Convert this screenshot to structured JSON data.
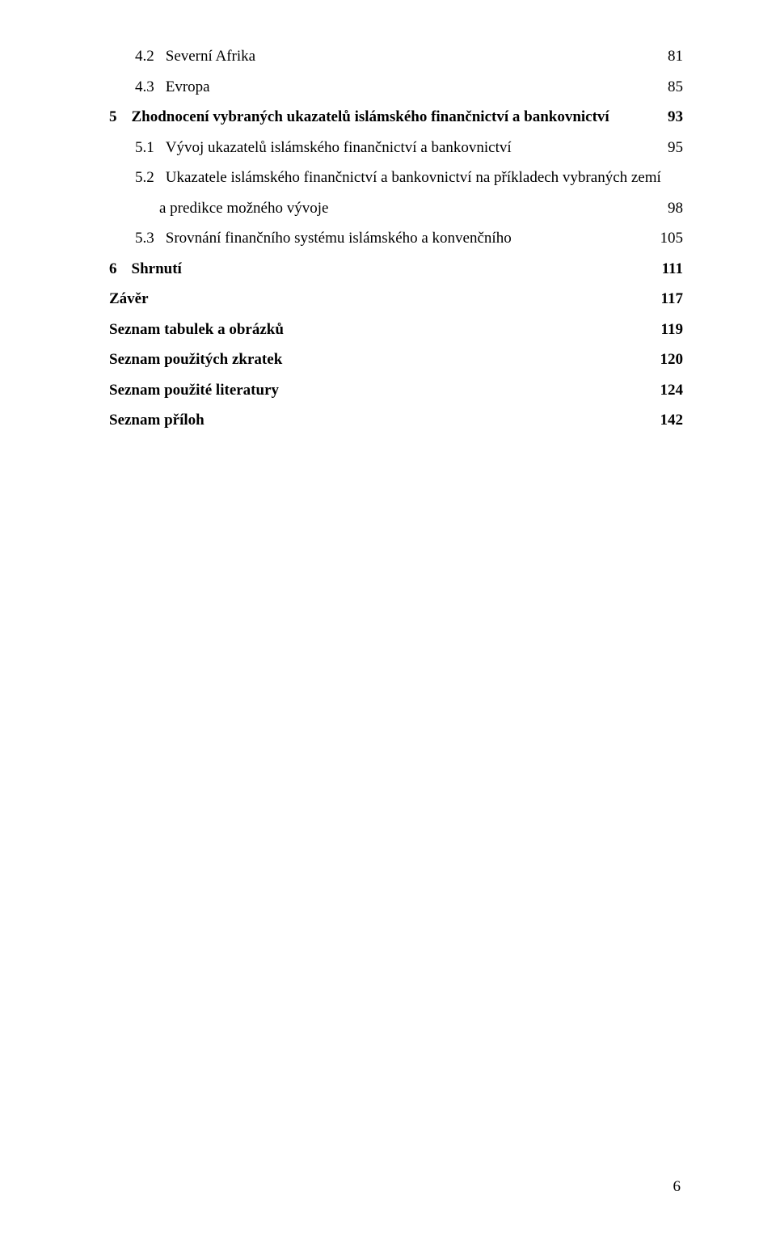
{
  "typography": {
    "font_family": "Times New Roman",
    "base_fontsize_pt": 12,
    "line_color": "#000000",
    "background_color": "#ffffff",
    "dot_leader_color": "#000000"
  },
  "toc": [
    {
      "level": 2,
      "bold": false,
      "number": "4.2",
      "label": "Severní Afrika",
      "page": "81"
    },
    {
      "level": 2,
      "bold": false,
      "number": "4.3",
      "label": "Evropa",
      "page": "85"
    },
    {
      "level": 1,
      "bold": true,
      "number": "5",
      "label": "Zhodnocení vybraných ukazatelů islámského finančnictví a bankovnictví",
      "page": "93"
    },
    {
      "level": 2,
      "bold": false,
      "number": "5.1",
      "label": "Vývoj ukazatelů islámského finančnictví a bankovnictví",
      "page": "95"
    },
    {
      "level": 2,
      "bold": false,
      "number": "5.2",
      "label": "Ukazatele islámského finančnictví a bankovnictví na příkladech vybraných zemí a predikce možného vývoje",
      "page": "98"
    },
    {
      "level": 2,
      "bold": false,
      "number": "5.3",
      "label": "Srovnání finančního systému islámského a konvenčního",
      "page": "105"
    },
    {
      "level": 1,
      "bold": true,
      "number": "6",
      "label": "Shrnutí",
      "page": "111"
    },
    {
      "level": 0,
      "bold": true,
      "number": "",
      "label": "Závěr",
      "page": "117"
    },
    {
      "level": 0,
      "bold": true,
      "number": "",
      "label": "Seznam tabulek a obrázků",
      "page": "119"
    },
    {
      "level": 0,
      "bold": true,
      "number": "",
      "label": "Seznam použitých zkratek",
      "page": "120"
    },
    {
      "level": 0,
      "bold": true,
      "number": "",
      "label": "Seznam použité literatury",
      "page": "124"
    },
    {
      "level": 0,
      "bold": true,
      "number": "",
      "label": "Seznam příloh",
      "page": "142"
    }
  ],
  "entry52_line1": "Ukazatele islámského finančnictví a bankovnictví na příkladech vybraných zemí",
  "entry52_line2": "a predikce možného vývoje",
  "footer_page_number": "6"
}
